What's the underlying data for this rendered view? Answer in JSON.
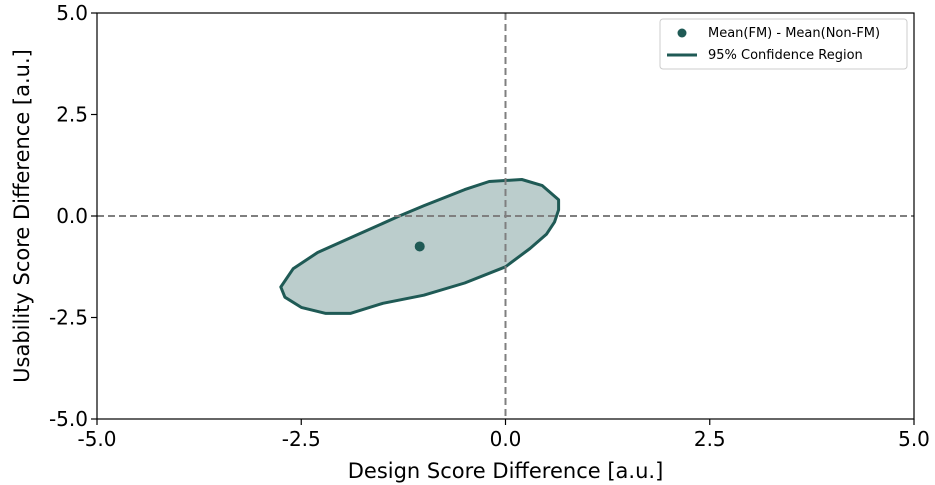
{
  "chart_data": {
    "type": "scatter",
    "xlabel": "Design Score Difference [a.u.]",
    "ylabel": "Usability Score Difference [a.u.]",
    "xlim": [
      -5.0,
      5.0
    ],
    "ylim": [
      -5.0,
      5.0
    ],
    "xticks": [
      -5.0,
      -2.5,
      0.0,
      2.5,
      5.0
    ],
    "yticks": [
      -5.0,
      -2.5,
      0.0,
      2.5,
      5.0
    ],
    "xtick_labels": [
      "-5.0",
      "-2.5",
      "0.0",
      "2.5",
      "5.0"
    ],
    "ytick_labels": [
      "-5.0",
      "-2.5",
      "0.0",
      "2.5",
      "5.0"
    ],
    "reference_lines": {
      "x": 0.0,
      "y": 0.0,
      "style": "dashed",
      "color": "#7f7f7f"
    },
    "grid": false,
    "legend_position": "top-right",
    "series": [
      {
        "name": "Mean(FM) - Mean(Non-FM)",
        "kind": "point",
        "x": [
          -1.05
        ],
        "y": [
          -0.75
        ],
        "color": "#1f5a55"
      },
      {
        "name": "95% Confidence Region",
        "kind": "ellipse",
        "center": [
          -1.05,
          -0.75
        ],
        "vertices": [
          [
            0.65,
            0.15
          ],
          [
            0.6,
            -0.15
          ],
          [
            0.5,
            -0.45
          ],
          [
            0.3,
            -0.8
          ],
          [
            0.0,
            -1.25
          ],
          [
            -0.5,
            -1.65
          ],
          [
            -1.0,
            -1.95
          ],
          [
            -1.5,
            -2.15
          ],
          [
            -1.9,
            -2.4
          ],
          [
            -2.2,
            -2.4
          ],
          [
            -2.5,
            -2.25
          ],
          [
            -2.7,
            -2.0
          ],
          [
            -2.75,
            -1.75
          ],
          [
            -2.6,
            -1.3
          ],
          [
            -2.3,
            -0.9
          ],
          [
            -1.8,
            -0.45
          ],
          [
            -1.3,
            0.0
          ],
          [
            -1.0,
            0.25
          ],
          [
            -0.5,
            0.65
          ],
          [
            -0.2,
            0.85
          ],
          [
            0.2,
            0.9
          ],
          [
            0.45,
            0.75
          ],
          [
            0.65,
            0.4
          ]
        ],
        "edge_color": "#1f5a55",
        "fill_color": "#1f5a55",
        "fill_opacity": 0.3
      }
    ]
  }
}
